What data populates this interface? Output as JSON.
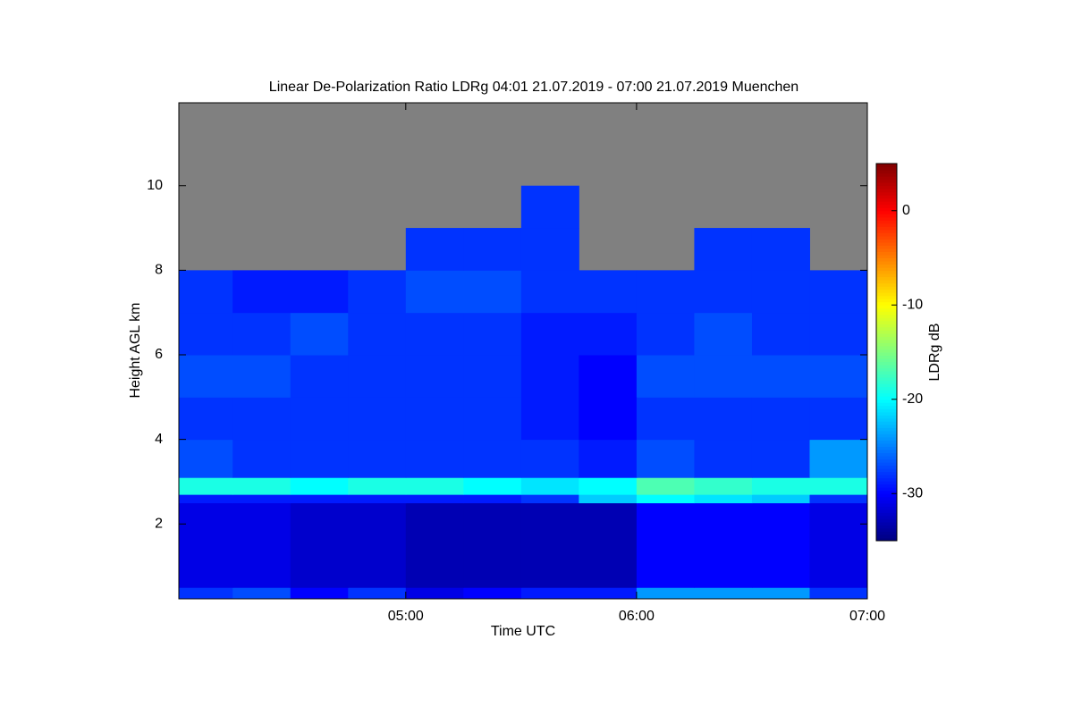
{
  "chart_data": {
    "type": "heatmap",
    "title": "Linear De-Polarization Ratio LDRg   04:01 21.07.2019 - 07:00 21.07.2019 Muenchen",
    "xlabel": "Time UTC",
    "ylabel": "Height AGL km",
    "colorbar_label": "LDRg dB",
    "x_edges": [
      4.0167,
      4.25,
      4.5,
      4.75,
      5,
      5.25,
      5.5,
      5.75,
      6,
      6.25,
      6.5,
      6.75,
      7
    ],
    "y_edges": [
      0.23,
      0.5,
      2.5,
      2.7,
      3.1,
      4,
      5,
      6,
      7,
      8,
      9,
      10,
      11,
      11.96
    ],
    "z": [
      [
        -28,
        -27,
        -30,
        -28,
        -31,
        -30,
        -29,
        -29,
        -24,
        -24,
        -24,
        -28
      ],
      [
        -31,
        -31,
        -32,
        -32,
        -33,
        -33,
        -33,
        -33,
        -30,
        -30,
        -30,
        -31
      ],
      [
        -29,
        -29,
        -29,
        -29,
        -29,
        -29,
        -28,
        -22,
        -20,
        -21,
        -22,
        -28
      ],
      [
        -19,
        -19,
        -20,
        -19,
        -19,
        -20,
        -21,
        -20,
        -17,
        -18,
        -19,
        -19
      ],
      [
        -27,
        -28,
        -28,
        -28,
        -28,
        -28,
        -28,
        -29,
        -27,
        -28,
        -28,
        -24
      ],
      [
        -28,
        -28,
        -28,
        -28,
        -28,
        -28,
        -29,
        -30,
        -28,
        -28,
        -28,
        -28
      ],
      [
        -27,
        -27,
        -28,
        -28,
        -28,
        -28,
        -29,
        -30,
        -27,
        -27,
        -27,
        -27
      ],
      [
        -28,
        -28,
        -27,
        -28,
        -28,
        -28,
        -29,
        -29,
        -28,
        -27,
        -28,
        -28
      ],
      [
        -28,
        -29,
        -29,
        -28,
        -27,
        -27,
        -28,
        -28,
        -28,
        -28,
        -28,
        -28
      ],
      [
        null,
        null,
        null,
        null,
        -28,
        -28,
        -28,
        null,
        null,
        -28,
        -28,
        null
      ],
      [
        null,
        null,
        null,
        null,
        null,
        null,
        -28,
        null,
        null,
        null,
        null,
        null
      ],
      [
        null,
        null,
        null,
        null,
        null,
        null,
        null,
        null,
        null,
        null,
        null,
        null
      ],
      [
        null,
        null,
        null,
        null,
        null,
        null,
        null,
        null,
        null,
        null,
        null,
        null
      ]
    ],
    "xlim": [
      4.0167,
      7
    ],
    "xticks": [
      {
        "value": 5,
        "label": "05:00"
      },
      {
        "value": 6,
        "label": "06:00"
      },
      {
        "value": 7,
        "label": "07:00"
      }
    ],
    "ylim": [
      0.23,
      11.96
    ],
    "yticks": [
      2,
      4,
      6,
      8,
      10
    ],
    "clim": [
      -35,
      5
    ],
    "cticks": [
      -30,
      -20,
      -10,
      0
    ],
    "colormap": "jet",
    "missing_color": "#808080"
  }
}
